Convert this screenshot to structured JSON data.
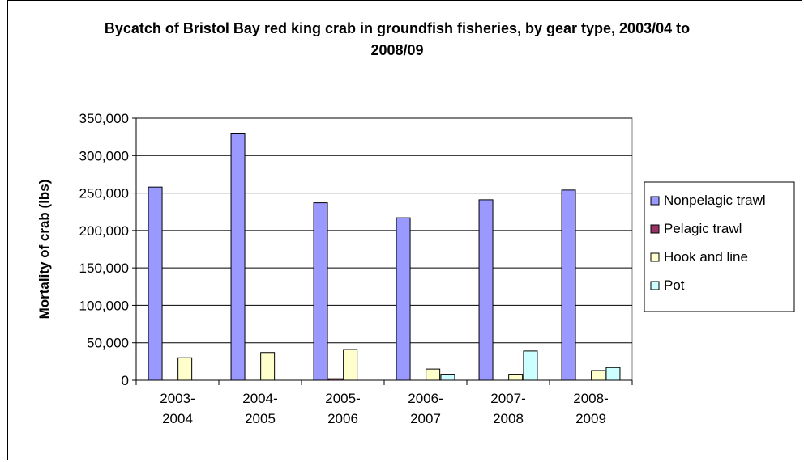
{
  "chart_data": {
    "type": "bar",
    "title": "Bycatch of Bristol Bay red king crab in groundfish fisheries, by gear type, 2003/04 to 2008/09",
    "ylabel": "Mortality of crab (lbs)",
    "xlabel": "",
    "ylim": [
      0,
      350000
    ],
    "yticks": [
      "0",
      "50,000",
      "100,000",
      "150,000",
      "200,000",
      "250,000",
      "300,000",
      "350,000"
    ],
    "categories": [
      [
        "2003-",
        "2004"
      ],
      [
        "2004-",
        "2005"
      ],
      [
        "2005-",
        "2006"
      ],
      [
        "2006-",
        "2007"
      ],
      [
        "2007-",
        "2008"
      ],
      [
        "2008-",
        "2009"
      ]
    ],
    "series": [
      {
        "name": "Nonpelagic trawl",
        "color": "#9999ff",
        "values": [
          258000,
          330000,
          237000,
          217000,
          241000,
          254000
        ]
      },
      {
        "name": "Pelagic trawl",
        "color": "#993366",
        "values": [
          0,
          0,
          2000,
          0,
          0,
          0
        ]
      },
      {
        "name": "Hook and line",
        "color": "#ffffcc",
        "values": [
          30000,
          37000,
          41000,
          15000,
          8000,
          13000
        ]
      },
      {
        "name": "Pot",
        "color": "#ccffff",
        "values": [
          0,
          0,
          0,
          8000,
          39000,
          17000
        ]
      }
    ],
    "grid": true,
    "legend_position": "right",
    "plot_background": "#ffffff"
  }
}
